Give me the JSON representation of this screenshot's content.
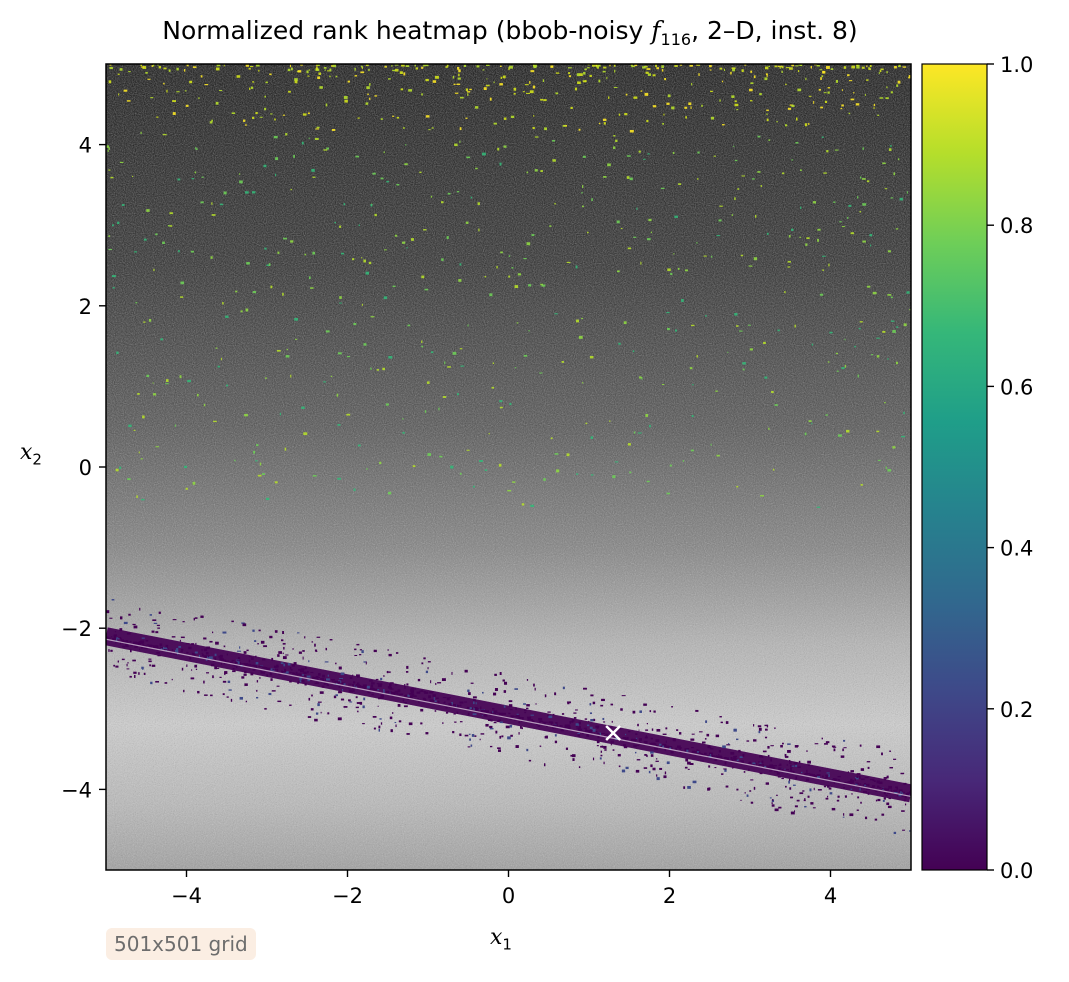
{
  "chart_data": {
    "type": "heatmap",
    "title_prefix": "Normalized rank heatmap (bbob-noisy ",
    "title_fn": "f",
    "title_sub": "116",
    "title_suffix": ", 2–D, inst. 8)",
    "xlabel": "x",
    "xlabel_sub": "1",
    "ylabel": "x",
    "ylabel_sub": "2",
    "xlim": [
      -5,
      5
    ],
    "ylim": [
      -5,
      5
    ],
    "xticks": [
      -4,
      -2,
      0,
      2,
      4
    ],
    "xtick_labels": [
      "−4",
      "−2",
      "0",
      "2",
      "4"
    ],
    "yticks": [
      -4,
      -2,
      0,
      2,
      4
    ],
    "ytick_labels": [
      "−4",
      "−2",
      "0",
      "2",
      "4"
    ],
    "colorbar": {
      "colormap": "viridis",
      "range": [
        0,
        1
      ],
      "ticks": [
        0.0,
        0.2,
        0.4,
        0.6,
        0.8,
        1.0
      ],
      "tick_labels": [
        "0.0",
        "0.2",
        "0.4",
        "0.6",
        "0.8",
        "1.0"
      ],
      "stops": [
        "#440154",
        "#482878",
        "#3e4989",
        "#31688e",
        "#26828e",
        "#1f9e89",
        "#35b779",
        "#6ece58",
        "#b5de2b",
        "#fde725"
      ]
    },
    "valley": {
      "description_values": "low-rank band along line",
      "start": [
        -5,
        -2.1
      ],
      "end": [
        5,
        -4.05
      ]
    },
    "optimum_marker": [
      1.3,
      -3.3
    ],
    "grid": false
  },
  "annotation": {
    "text": "501x501 grid"
  },
  "colors": {
    "background": "#ffffff",
    "note_bg": "#fbeee3",
    "note_text": "#6d6d6d"
  }
}
